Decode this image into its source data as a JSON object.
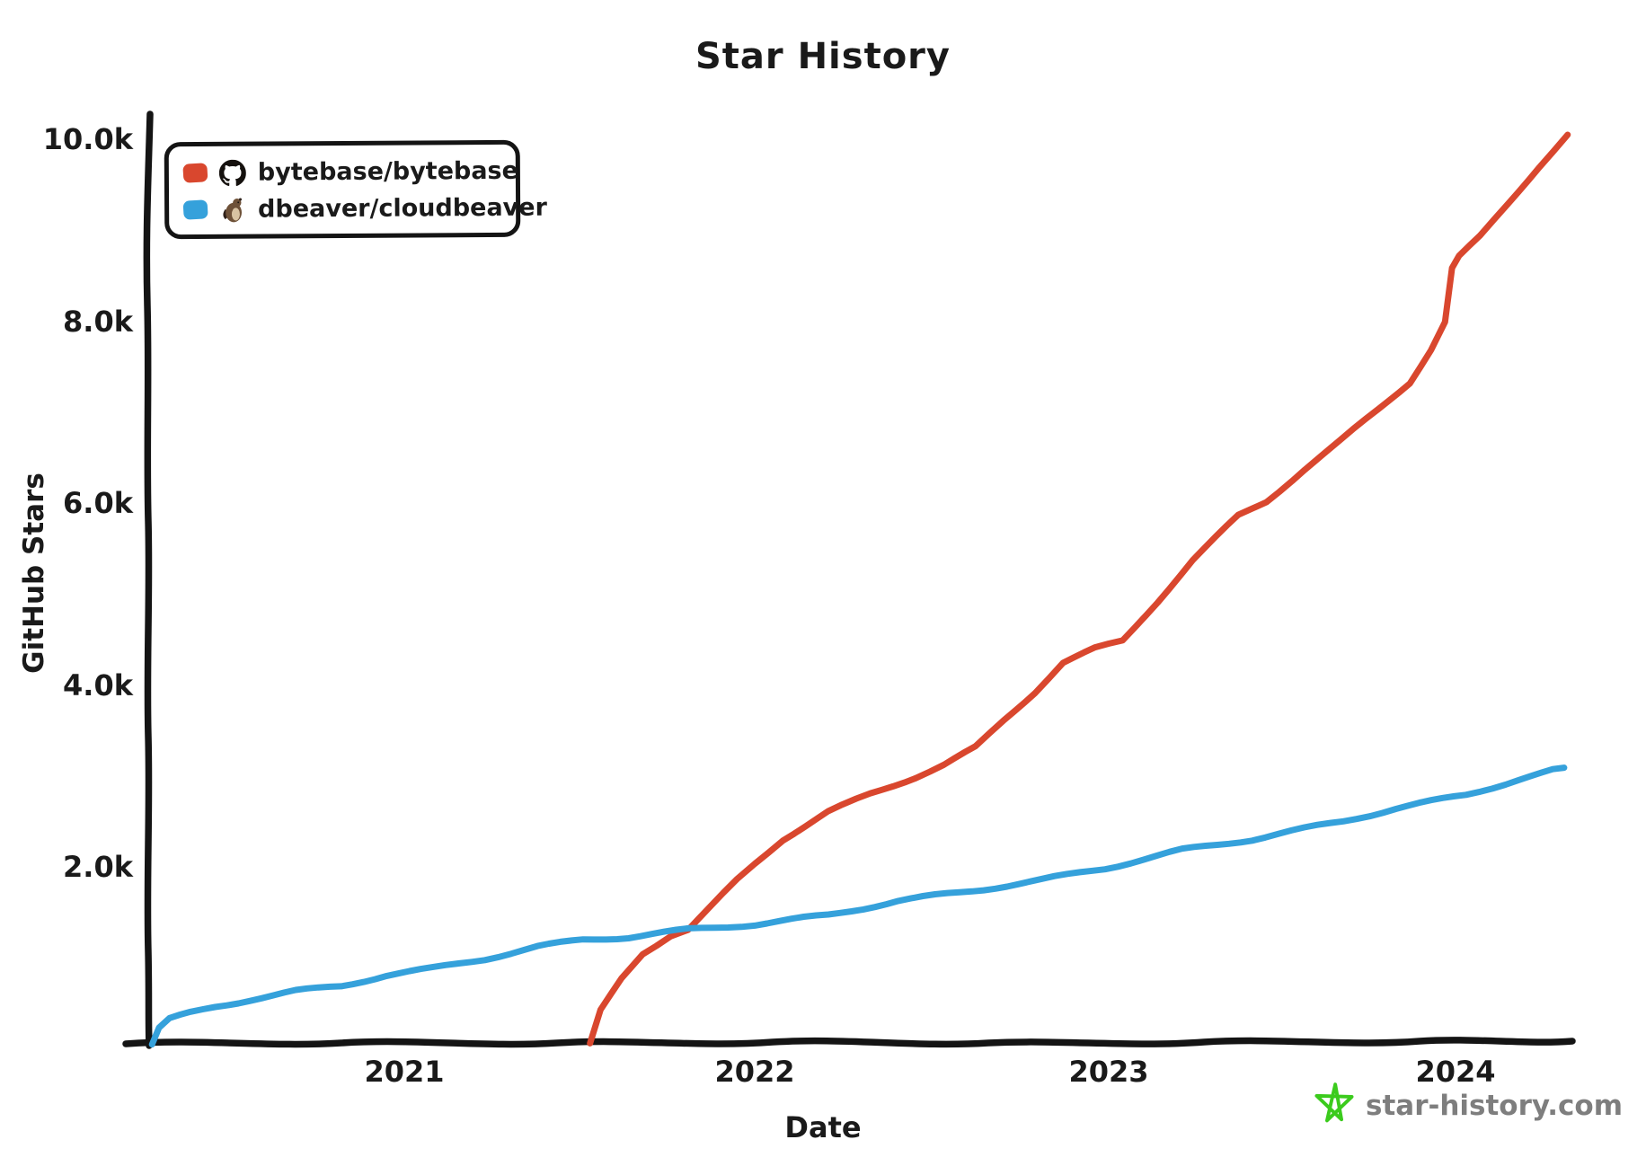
{
  "title": "Star History",
  "axes": {
    "x_label": "Date",
    "y_label": "GitHub Stars",
    "x_ticks": [
      "2021",
      "2022",
      "2023",
      "2024"
    ],
    "y_ticks": [
      "2.0k",
      "4.0k",
      "6.0k",
      "8.0k",
      "10.0k"
    ]
  },
  "legend": {
    "items": [
      {
        "label": "bytebase/bytebase",
        "color": "#D9472E",
        "icon": "github-logo"
      },
      {
        "label": "dbeaver/cloudbeaver",
        "color": "#35A1DB",
        "icon": "beaver-avatar"
      }
    ]
  },
  "footer": {
    "label": "star-history.com",
    "star_color": "#3BCB1D",
    "text_color": "#7E7E7E"
  },
  "chart_data": {
    "type": "line",
    "title": "Star History",
    "xlabel": "Date",
    "ylabel": "GitHub Stars",
    "x_tick_values": [
      2021,
      2022,
      2023,
      2024
    ],
    "xlim": [
      2020.25,
      2024.35
    ],
    "ylim": [
      0,
      10300
    ],
    "grid": false,
    "legend_position": "top-left",
    "series": [
      {
        "name": "bytebase/bytebase",
        "color": "#D9472E",
        "x": [
          2021.53,
          2021.56,
          2021.62,
          2021.68,
          2021.76,
          2021.81,
          2021.87,
          2021.95,
          2022.0,
          2022.08,
          2022.21,
          2022.33,
          2022.46,
          2022.54,
          2022.63,
          2022.71,
          2022.8,
          2022.88,
          2022.97,
          2023.05,
          2023.15,
          2023.25,
          2023.38,
          2023.46,
          2023.57,
          2023.67,
          2023.78,
          2023.87,
          2023.93,
          2023.97,
          2023.99,
          2024.01,
          2024.07,
          2024.15,
          2024.24,
          2024.32
        ],
        "y": [
          0,
          370,
          730,
          1010,
          1210,
          1270,
          1500,
          1820,
          2000,
          2270,
          2570,
          2770,
          2960,
          3090,
          3280,
          3580,
          3900,
          4220,
          4370,
          4460,
          4900,
          5350,
          5840,
          6000,
          6360,
          6660,
          7020,
          7320,
          7680,
          7980,
          8570,
          8700,
          8920,
          9290,
          9710,
          10050
        ]
      },
      {
        "name": "dbeaver/cloudbeaver",
        "color": "#35A1DB",
        "x": [
          2020.28,
          2020.3,
          2020.33,
          2020.39,
          2020.46,
          2020.56,
          2020.69,
          2020.82,
          2020.95,
          2021.08,
          2021.23,
          2021.38,
          2021.51,
          2021.64,
          2021.81,
          2022.0,
          2022.21,
          2022.41,
          2022.62,
          2022.82,
          2023.0,
          2023.22,
          2023.42,
          2023.68,
          2023.83,
          2024.03,
          2024.18,
          2024.31
        ],
        "y": [
          0,
          180,
          280,
          350,
          420,
          500,
          590,
          650,
          770,
          840,
          950,
          1080,
          1160,
          1190,
          1270,
          1330,
          1430,
          1590,
          1700,
          1820,
          1950,
          2150,
          2270,
          2470,
          2610,
          2760,
          2930,
          3060
        ]
      }
    ]
  }
}
